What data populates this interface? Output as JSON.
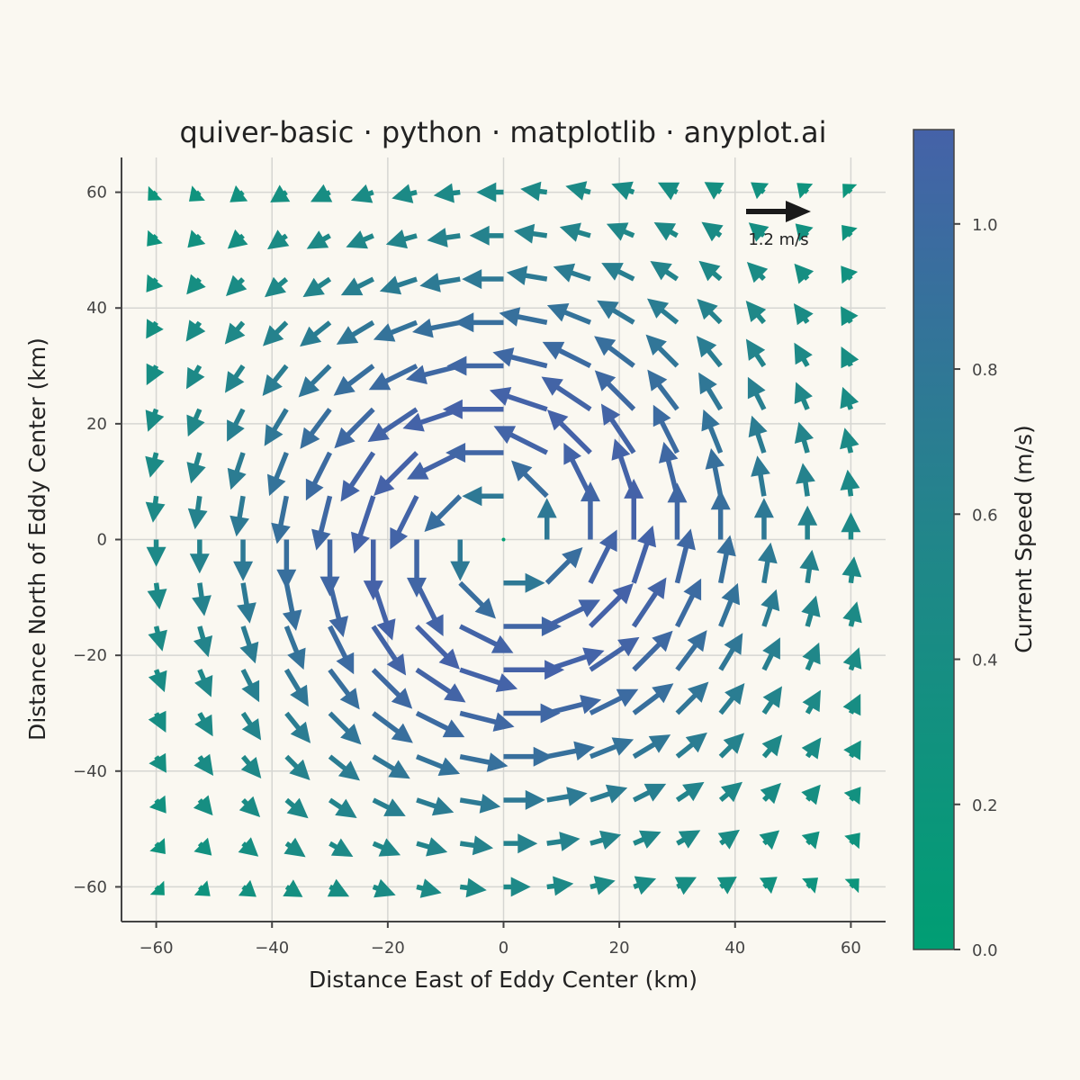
{
  "chart_data": {
    "type": "quiver",
    "title": "quiver-basic · python · matplotlib · anyplot.ai",
    "xlabel": "Distance East of Eddy Center (km)",
    "ylabel": "Distance North of Eddy Center (km)",
    "xlim": [
      -66,
      66
    ],
    "ylim": [
      -66,
      66
    ],
    "xticks": [
      -60,
      -40,
      -20,
      0,
      20,
      40,
      60
    ],
    "yticks": [
      -60,
      -40,
      -20,
      0,
      20,
      40,
      60
    ],
    "xtick_labels": [
      "−60",
      "−40",
      "−20",
      "0",
      "20",
      "40",
      "60"
    ],
    "ytick_labels": [
      "−60",
      "−40",
      "−20",
      "0",
      "20",
      "40",
      "60"
    ],
    "grid": true,
    "vector_field": {
      "x_start": -60,
      "x_step": 7.5,
      "nx": 17,
      "y_start": -60,
      "y_step": 7.5,
      "ny": 17,
      "model": "counter-clockwise eddy, peak speed near 20 km radius"
    },
    "key": {
      "label": "1.2 m/s",
      "value": 1.2
    },
    "colorbar": {
      "label": "Current Speed (m/s)",
      "ticks": [
        "0.0",
        "0.2",
        "0.4",
        "0.6",
        "0.8",
        "1.0"
      ],
      "tick_values": [
        0.0,
        0.2,
        0.4,
        0.6,
        0.8,
        1.0
      ],
      "range": [
        0,
        1.13
      ]
    },
    "colors": {
      "low": "#009e73",
      "mid": "#21868a",
      "high": "#4562a8",
      "background": "#faf8f1"
    }
  }
}
